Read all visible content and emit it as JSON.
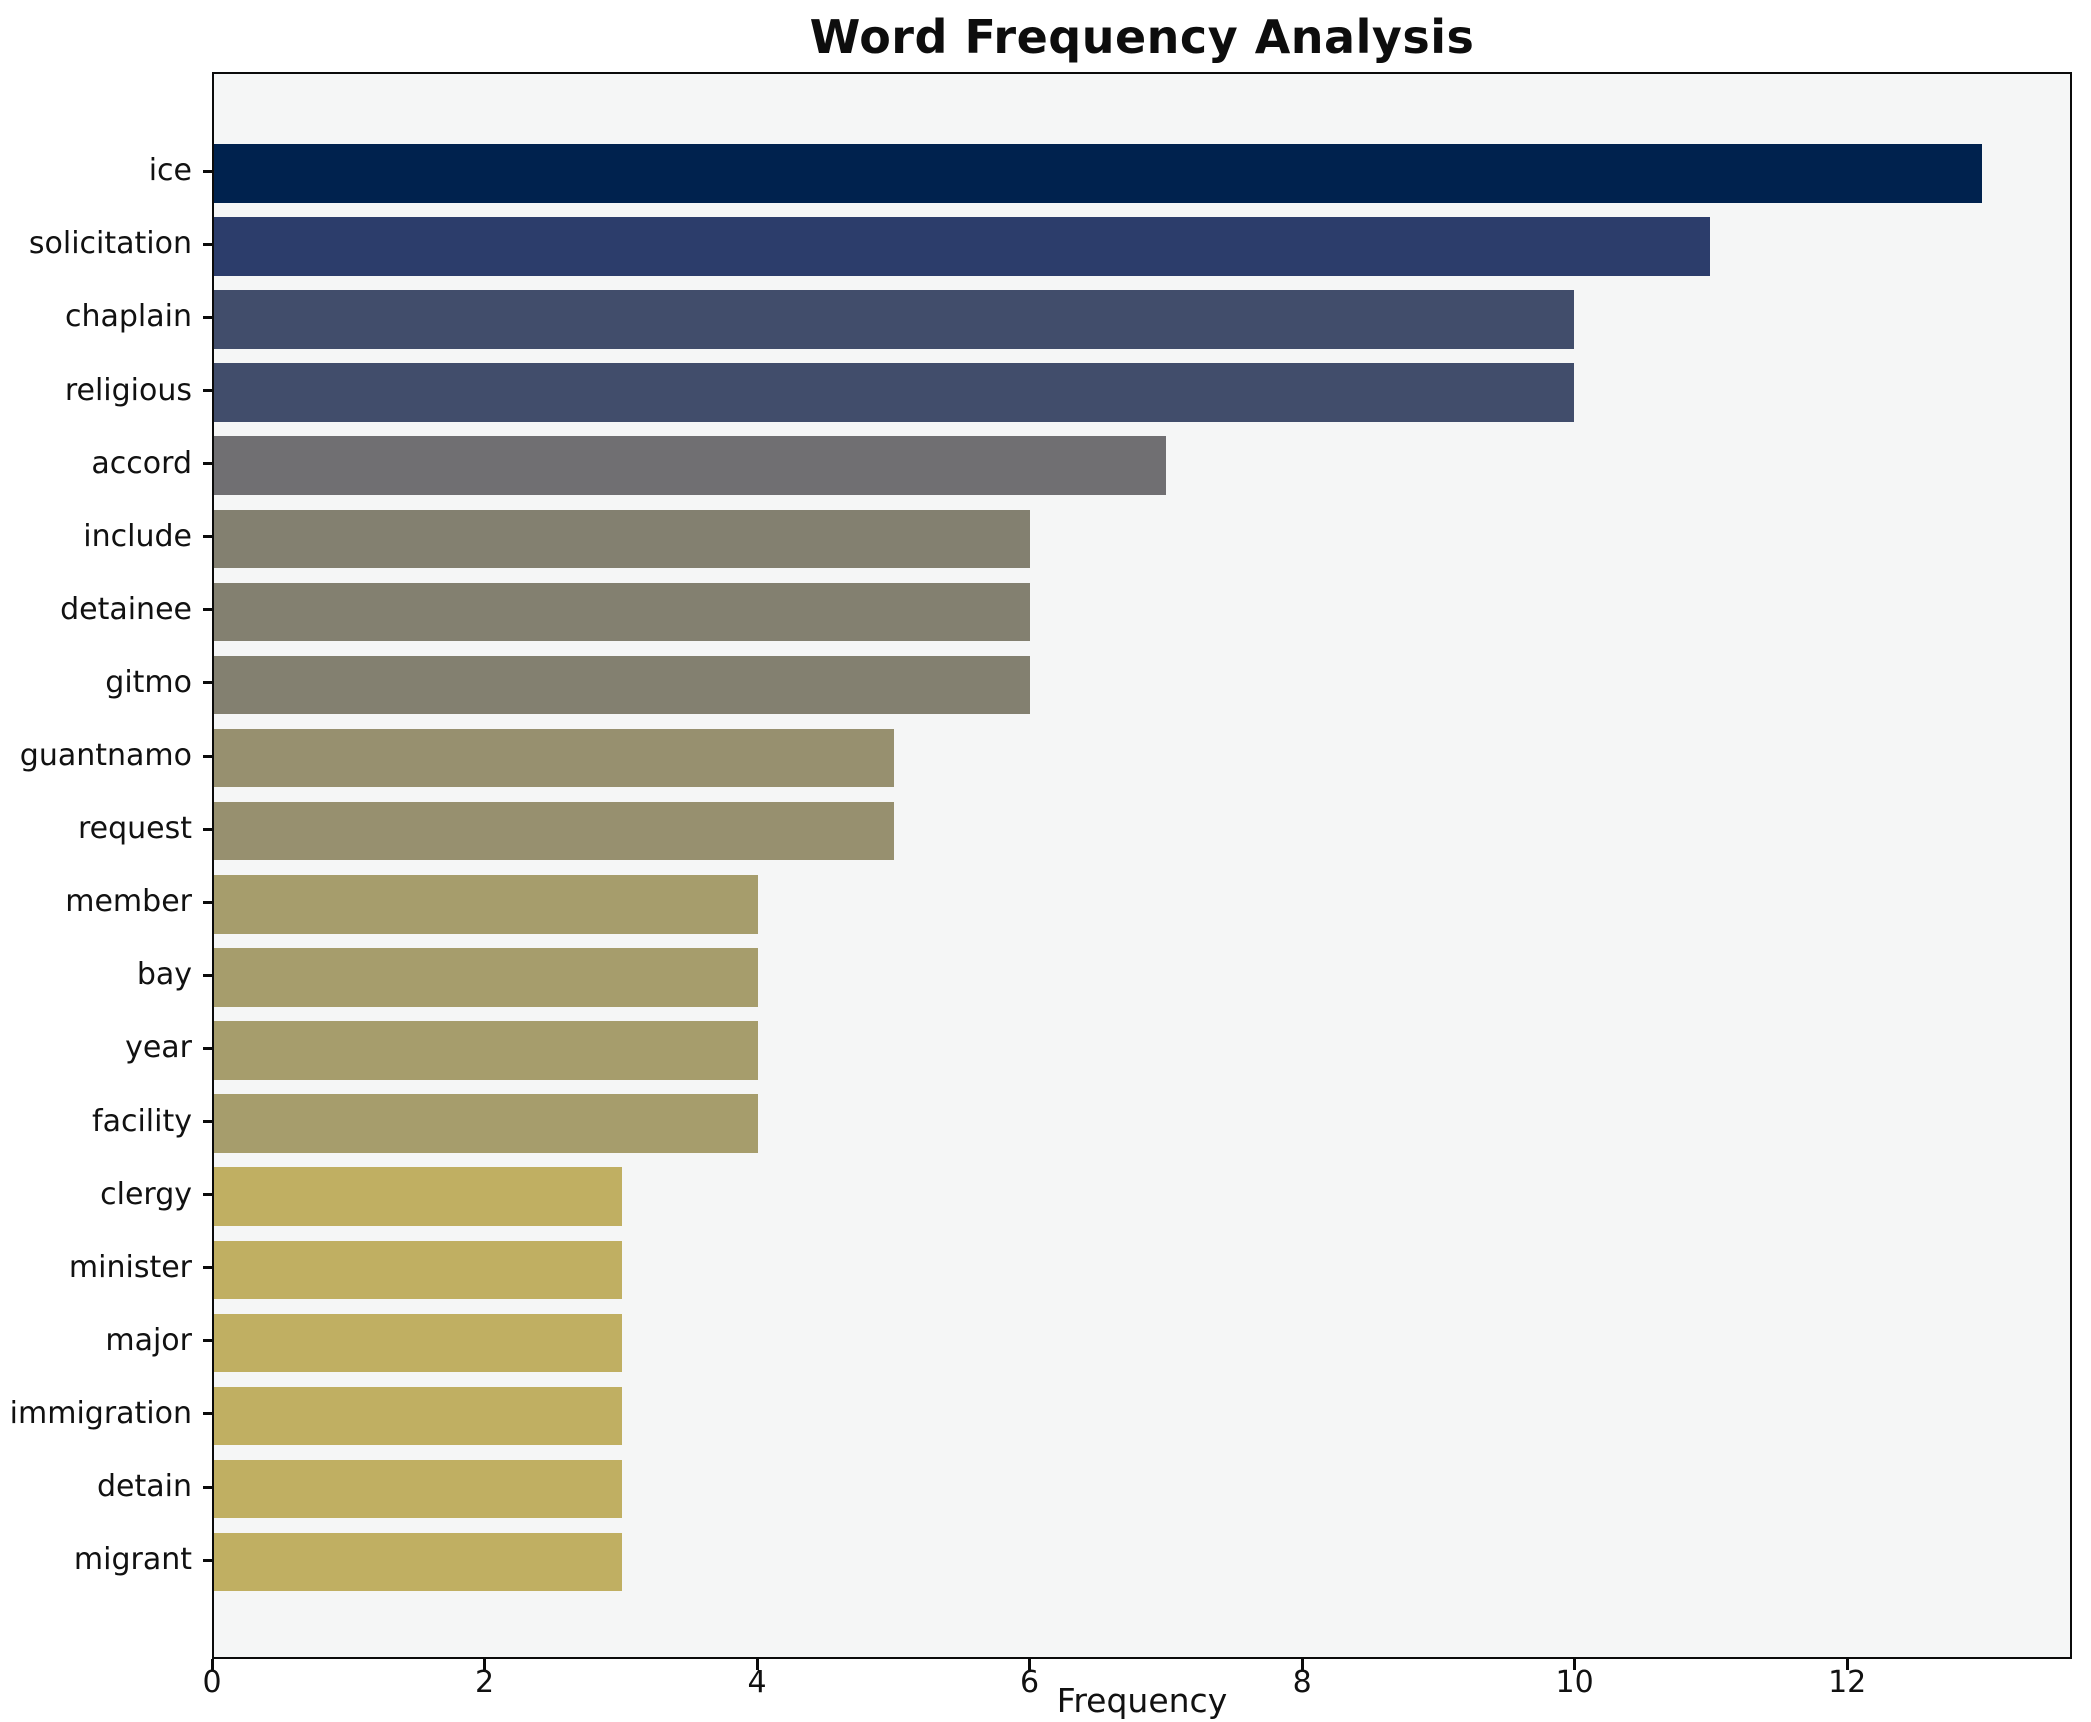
{
  "figure": {
    "title": "Word Frequency Analysis",
    "xlabel": "Frequency"
  },
  "chart_data": {
    "type": "bar",
    "orientation": "horizontal",
    "title": "Word Frequency Analysis",
    "xlabel": "Frequency",
    "ylabel": "",
    "categories": [
      "ice",
      "solicitation",
      "chaplain",
      "religious",
      "accord",
      "include",
      "detainee",
      "gitmo",
      "guantnamo",
      "request",
      "member",
      "bay",
      "year",
      "facility",
      "clergy",
      "minister",
      "major",
      "immigration",
      "detain",
      "migrant"
    ],
    "values": [
      13,
      11,
      10,
      10,
      7,
      6,
      6,
      6,
      5,
      5,
      4,
      4,
      4,
      4,
      3,
      3,
      3,
      3,
      3,
      3
    ],
    "bar_colors": [
      "#00224E",
      "#2C3D6B",
      "#414D6B",
      "#414D6B",
      "#706F72",
      "#838070",
      "#838070",
      "#838070",
      "#97906F",
      "#97906F",
      "#A69D6C",
      "#A69D6C",
      "#A69D6C",
      "#A69D6C",
      "#C0AF62",
      "#C0AF62",
      "#C0AF62",
      "#C0AF62",
      "#C0AF62",
      "#C0AF62"
    ],
    "colormap": "cividis",
    "x_axis": {
      "min": 0,
      "max": 13.65,
      "ticks": [
        0,
        2,
        4,
        6,
        8,
        10,
        12
      ]
    },
    "grid": false,
    "legend": "none",
    "plot_background": "#f5f6f6",
    "figure_background": "#ffffff"
  }
}
